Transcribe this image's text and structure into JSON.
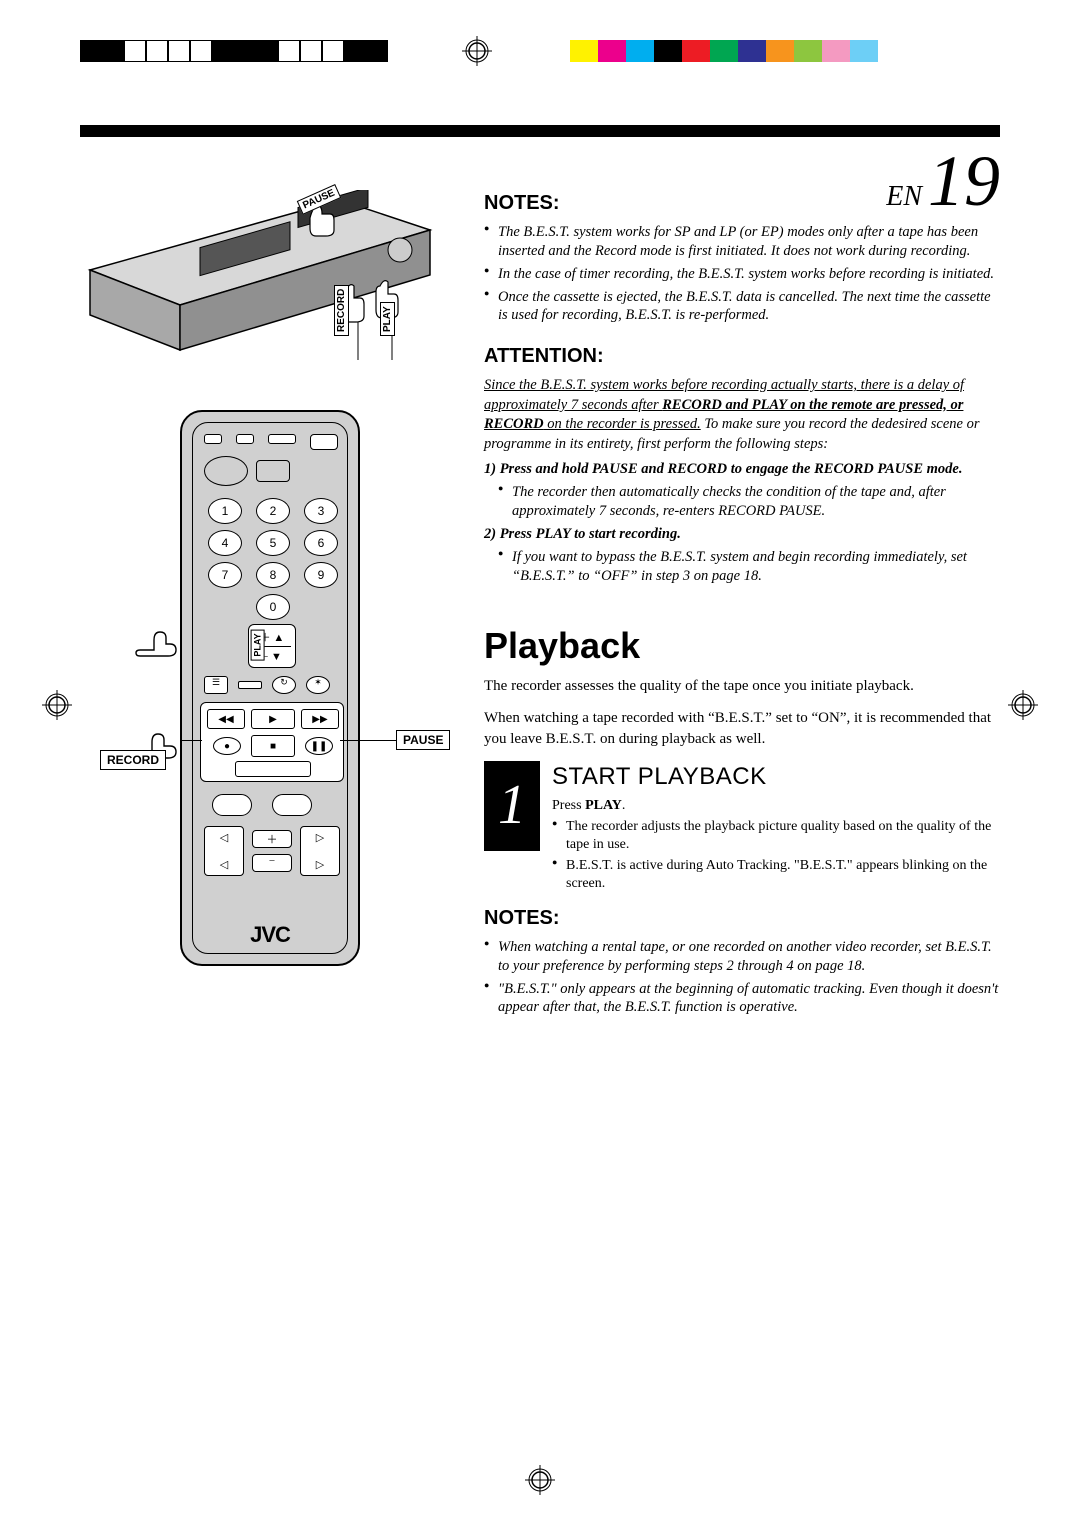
{
  "page": {
    "lang": "EN",
    "number": "19"
  },
  "print_marks": {
    "boxes": [
      "filled",
      "filled",
      "",
      "",
      "",
      "",
      "filled",
      "filled",
      "filled",
      "",
      "",
      "",
      "filled",
      "filled"
    ],
    "color_bars": [
      "#fff200",
      "#ec008c",
      "#00aeef",
      "#000000",
      "#ed1c24",
      "#00a651",
      "#2e3192",
      "#f7941d",
      "#8dc63f",
      "#f49ac1",
      "#6dcff6"
    ]
  },
  "sections": {
    "notes1": {
      "heading": "NOTES:",
      "items": [
        "The B.E.S.T. system works for SP and LP (or EP) modes only after a tape has been inserted and the Record mode is first initiated. It does not work during recording.",
        "In the case of timer recording, the B.E.S.T. system works before recording is initiated.",
        "Once the cassette is ejected, the B.E.S.T. data is cancelled. The next time the cassette is used for recording, B.E.S.T. is re-performed."
      ]
    },
    "attention": {
      "heading": "ATTENTION:",
      "intro_underline": "Since the B.E.S.T. system works before recording actually starts, there is a delay of approximately 7 seconds after ",
      "intro_bold_underline": "RECORD and PLAY on the remote are pressed, or RECORD",
      "intro_underline2": " on the recorder is pressed.",
      "intro_tail": " To make sure you record the dedesired scene or programme in its entirety, first perform the following steps:",
      "step1_lead": "1) Press and hold ",
      "step1_b1": "PAUSE",
      "step1_mid": " and ",
      "step1_b2": "RECORD",
      "step1_tail": " to engage the RECORD PAUSE mode.",
      "step1_bullet": "The recorder then automatically checks the condition of the tape and, after approximately 7 seconds, re-enters RECORD PAUSE.",
      "step2_lead": "2) Press ",
      "step2_b": "PLAY",
      "step2_tail": " to start recording.",
      "step2_bullet": "If you want to bypass the B.E.S.T. system and begin recording immediately, set “B.E.S.T.” to “OFF” in step 3 on page 18."
    },
    "playback": {
      "heading": "Playback",
      "p1": "The recorder assesses the quality of the tape once you initiate playback.",
      "p2": "When watching a tape recorded with “B.E.S.T.” set to “ON”, it is recommended that you leave B.E.S.T. on during playback as well."
    },
    "step": {
      "num": "1",
      "title": "START PLAYBACK",
      "press_lead": "Press ",
      "press_b": "PLAY",
      "press_tail": ".",
      "bullets": [
        "The recorder adjusts the playback picture quality based on the quality of the tape in use.",
        "B.E.S.T. is active during Auto Tracking. \"B.E.S.T.\" appears blinking on the screen."
      ]
    },
    "notes2": {
      "heading": "NOTES:",
      "items": [
        "When watching a rental tape, or one recorded on another video recorder, set B.E.S.T. to your preference by performing steps 2 through 4 on page 18.",
        "\"B.E.S.T.\" only appears at the beginning of automatic tracking. Even though it doesn't appear after that, the B.E.S.T. function is operative."
      ]
    }
  },
  "labels": {
    "vcr_pause": "PAUSE",
    "vcr_record": "RECORD",
    "vcr_play": "PLAY",
    "remote_play": "PLAY",
    "remote_record": "RECORD",
    "remote_pause": "PAUSE",
    "brand": "JVC"
  }
}
